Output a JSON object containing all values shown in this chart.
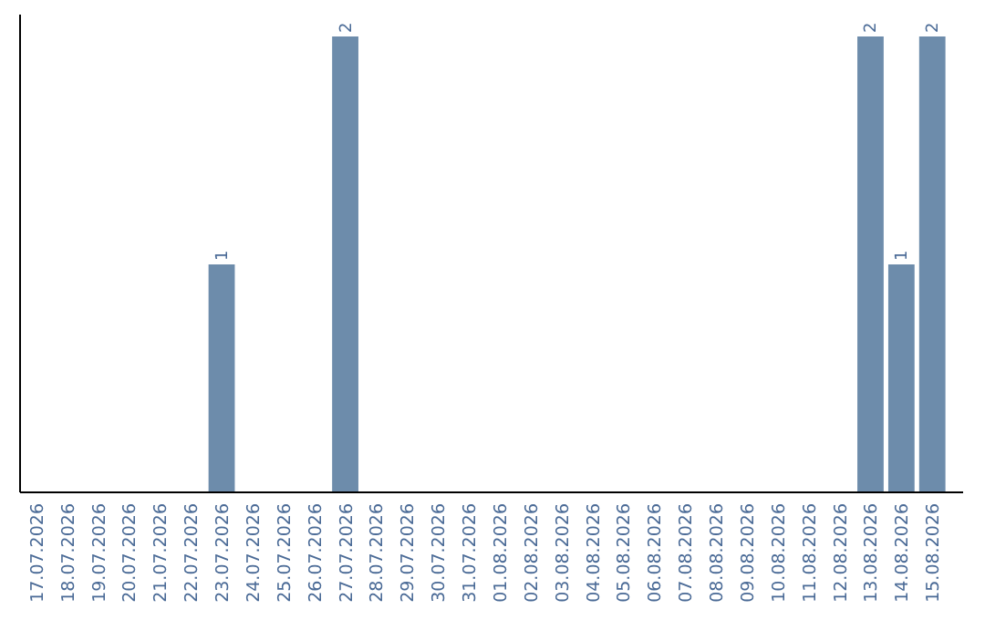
{
  "chart_data": {
    "type": "bar",
    "categories": [
      "17.07.2026",
      "18.07.2026",
      "19.07.2026",
      "20.07.2026",
      "21.07.2026",
      "22.07.2026",
      "23.07.2026",
      "24.07.2026",
      "25.07.2026",
      "26.07.2026",
      "27.07.2026",
      "28.07.2026",
      "29.07.2026",
      "30.07.2026",
      "31.07.2026",
      "01.08.2026",
      "02.08.2026",
      "03.08.2026",
      "04.08.2026",
      "05.08.2026",
      "06.08.2026",
      "07.08.2026",
      "08.08.2026",
      "09.08.2026",
      "10.08.2026",
      "11.08.2026",
      "12.08.2026",
      "13.08.2026",
      "14.08.2026",
      "15.08.2026"
    ],
    "values": [
      0,
      0,
      0,
      0,
      0,
      0,
      1,
      0,
      0,
      0,
      2,
      0,
      0,
      0,
      0,
      0,
      0,
      0,
      0,
      0,
      0,
      0,
      0,
      0,
      0,
      0,
      0,
      2,
      1,
      2
    ],
    "value_labels": [
      null,
      null,
      null,
      null,
      null,
      null,
      "1",
      null,
      null,
      null,
      "2",
      null,
      null,
      null,
      null,
      null,
      null,
      null,
      null,
      null,
      null,
      null,
      null,
      null,
      null,
      null,
      null,
      "2",
      "1",
      "2"
    ],
    "color": "#6d8cab",
    "tick_labels": "x"
  }
}
